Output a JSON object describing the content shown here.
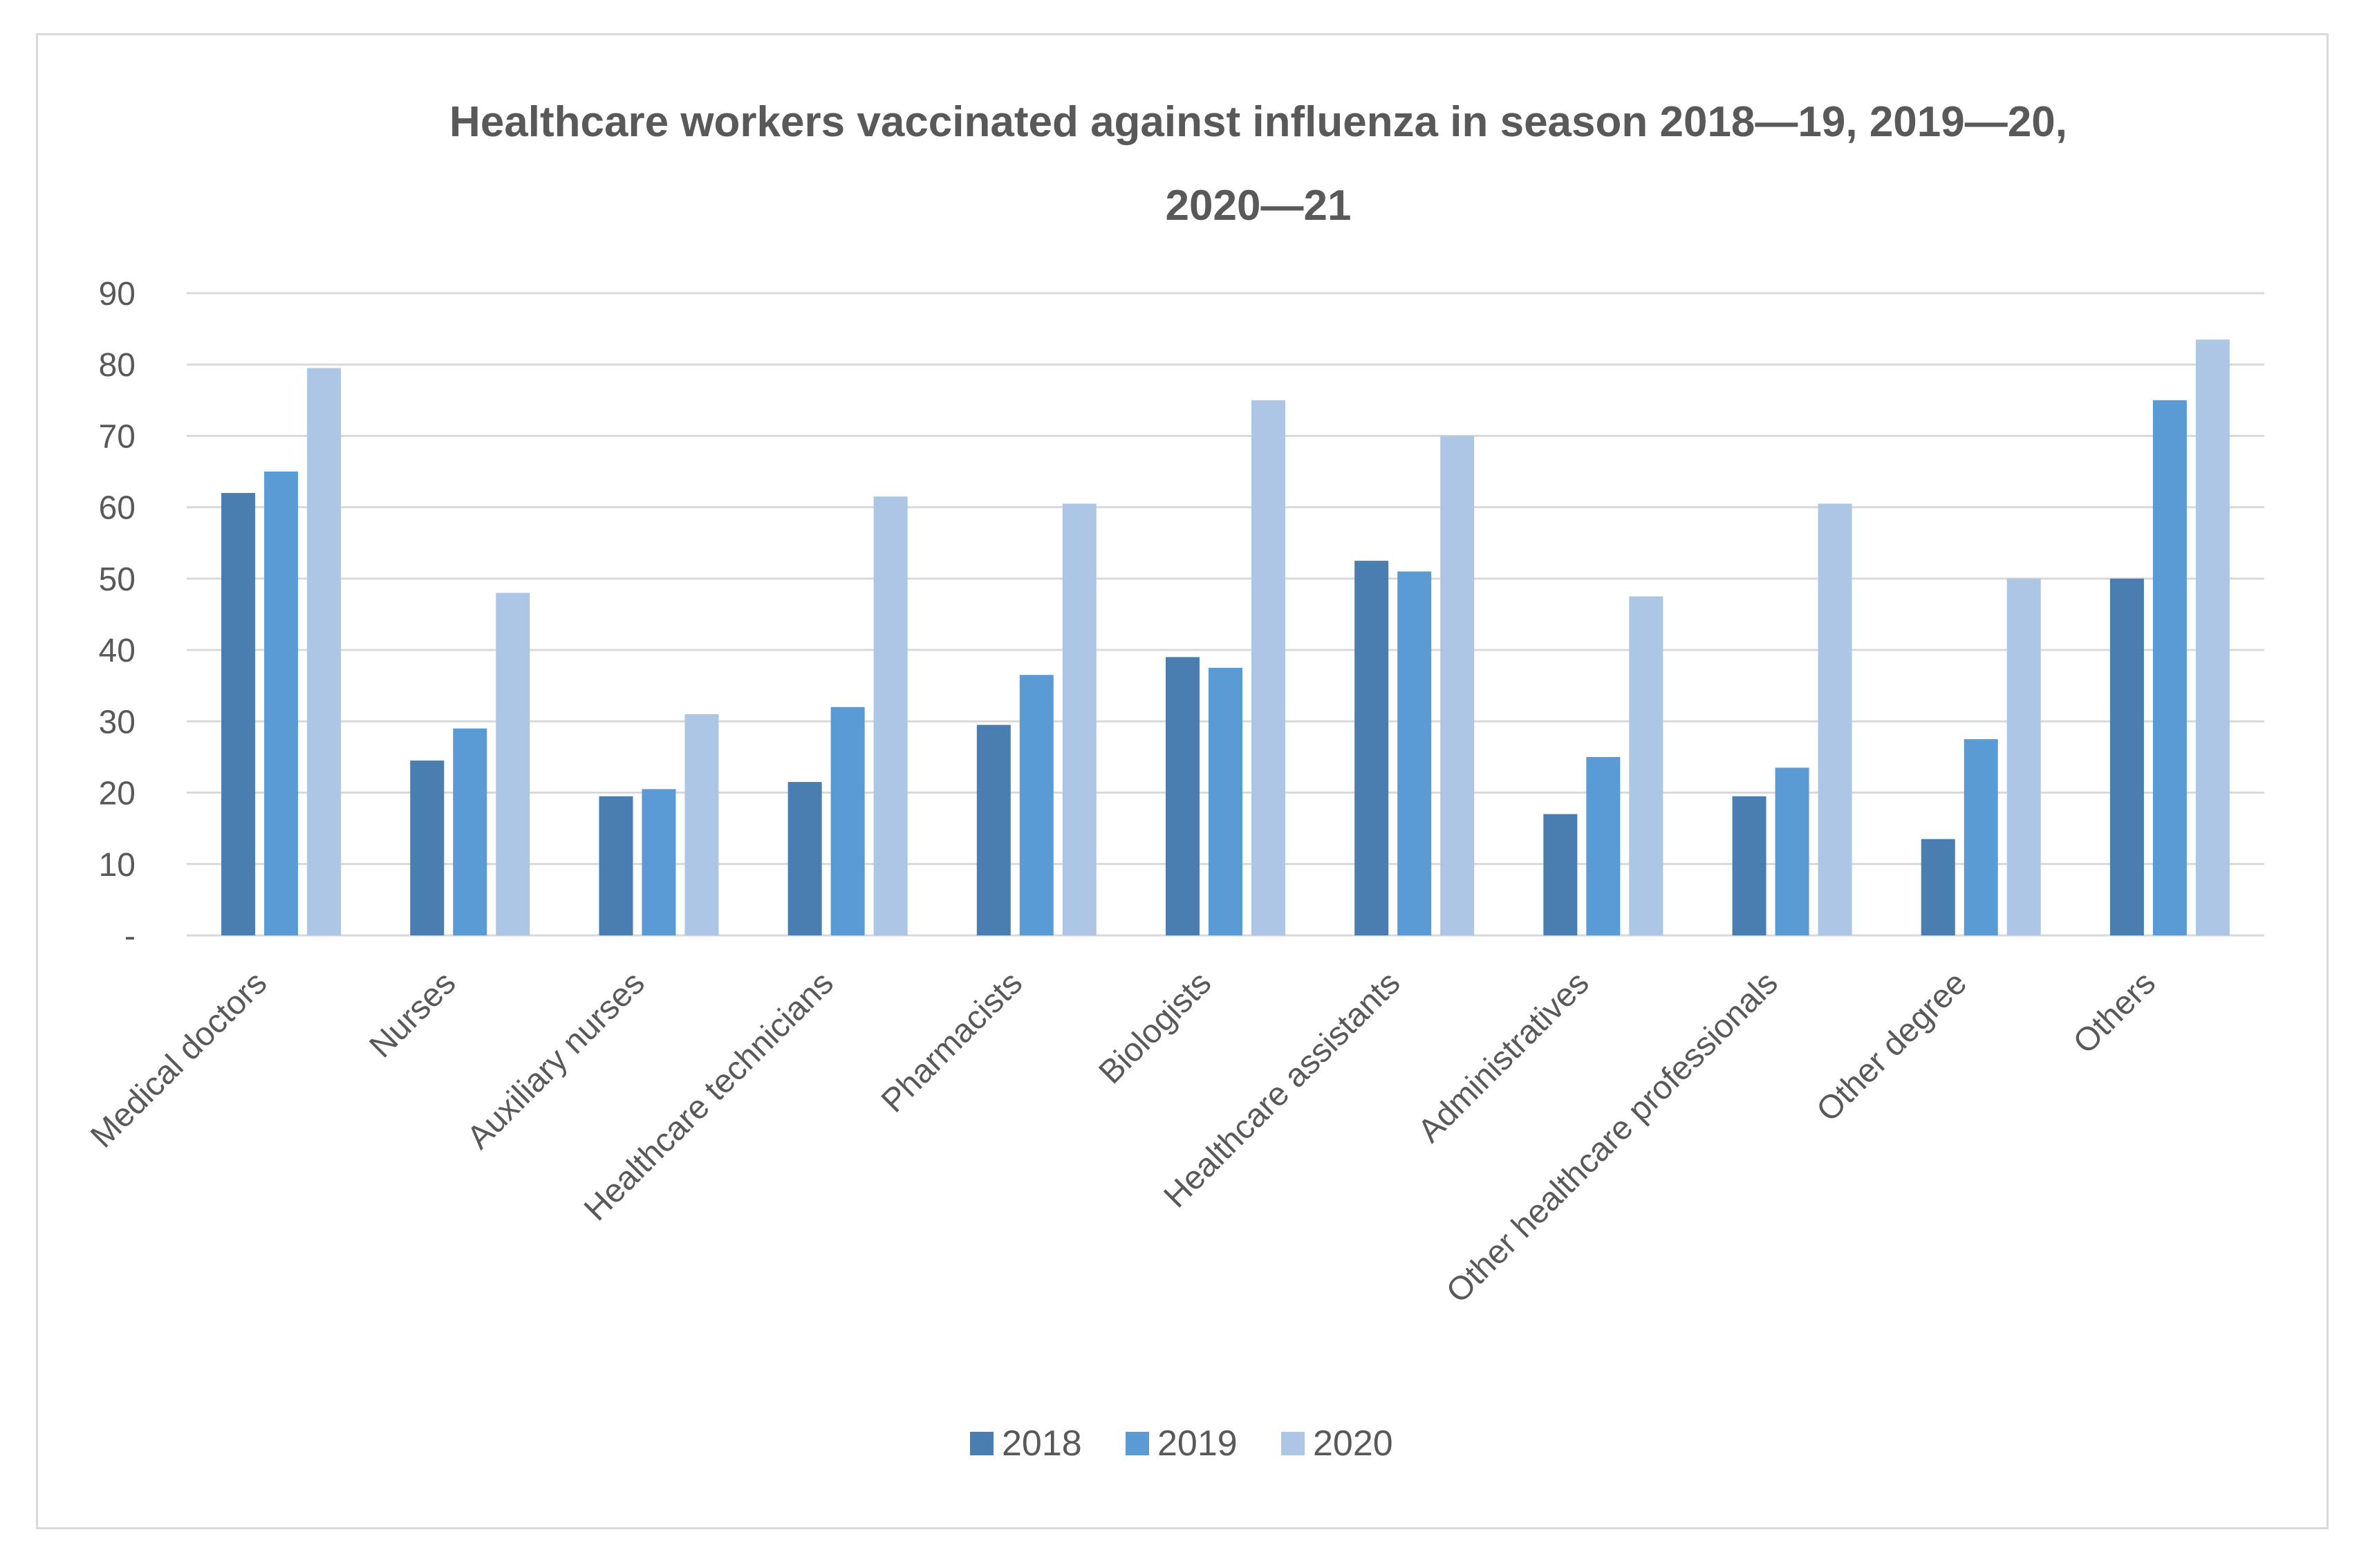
{
  "chart_data": {
    "type": "bar",
    "title_line1": "Healthcare workers vaccinated against  influenza in season 2018—19,  2019—20,",
    "title_line2": "2020—21",
    "categories": [
      "Medical doctors",
      "Nurses",
      "Auxiliary nurses",
      "Healthcare technicians",
      "Pharmacists",
      "Biologists",
      "Healthcare assistants",
      "Administratives",
      "Other healthcare professionals",
      "Other degree",
      "Others"
    ],
    "series": [
      {
        "name": "2018",
        "color": "#4a7db0",
        "values": [
          62,
          24.5,
          19.5,
          21.5,
          29.5,
          39,
          52.5,
          17,
          19.5,
          13.5,
          50
        ]
      },
      {
        "name": "2019",
        "color": "#5b9bd5",
        "values": [
          65,
          29,
          20.5,
          32,
          36.5,
          37.5,
          51,
          25,
          23.5,
          27.5,
          75
        ]
      },
      {
        "name": "2020",
        "color": "#adc6e5",
        "values": [
          79.5,
          48,
          31,
          61.5,
          60.5,
          75,
          70,
          47.5,
          60.5,
          50,
          83.5
        ]
      }
    ],
    "yticks": [
      "-",
      "10",
      "20",
      "30",
      "40",
      "50",
      "60",
      "70",
      "80",
      "90"
    ],
    "ylim": [
      0,
      90
    ],
    "grid": true,
    "legend": "bottom",
    "xlabel": "",
    "ylabel": ""
  }
}
